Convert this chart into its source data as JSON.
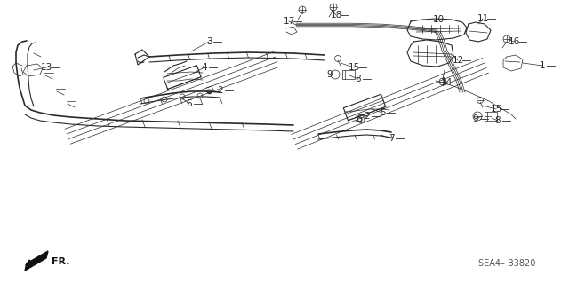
{
  "bg_color": "#ffffff",
  "lc": "#2a2a2a",
  "tc": "#2a2a2a",
  "fig_width": 6.4,
  "fig_height": 3.19,
  "dpi": 100,
  "watermark": "SEA4– B3820",
  "fr_label": "FR."
}
